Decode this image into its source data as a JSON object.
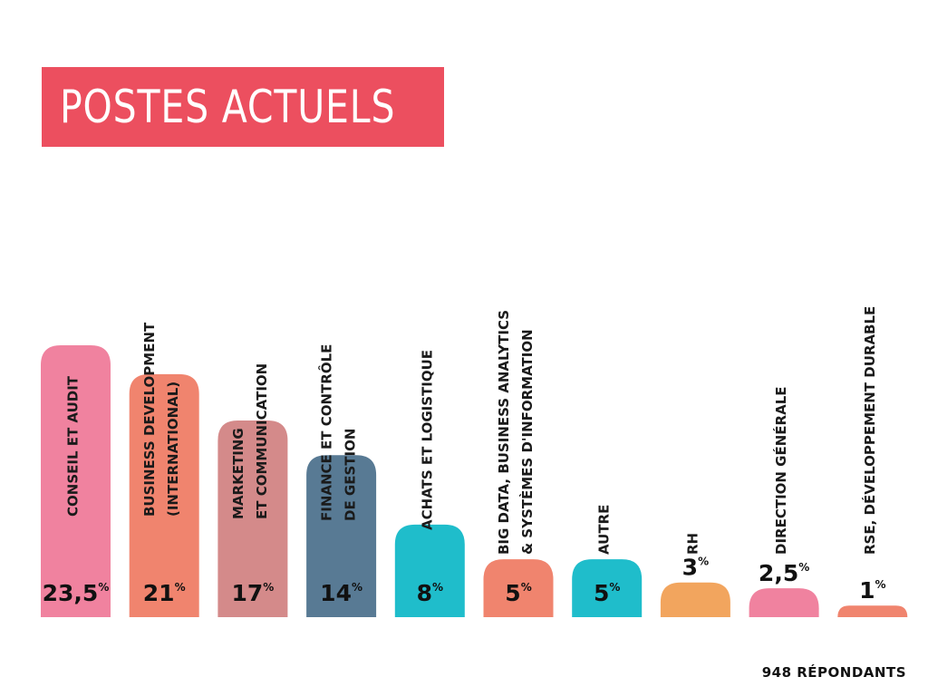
{
  "header": {
    "title": "POSTES ACTUELS"
  },
  "footer": {
    "respondents": "948 RÉPONDANTS"
  },
  "colors": {
    "title_bg": "#ec4f5f",
    "pink": "#f0829f",
    "salmon": "#f0846e",
    "rose": "#d48a8a",
    "slate": "#587a94",
    "teal": "#1fbdcb",
    "orange": "#f2a55e"
  },
  "chart_data": {
    "type": "bar",
    "title": "POSTES ACTUELS",
    "unit": "%",
    "ylim": [
      0,
      23.5
    ],
    "grid": false,
    "legend": "none",
    "categories": [
      "CONSEIL ET AUDIT",
      "BUSINESS DEVELOPMENT (INTERNATIONAL)",
      "MARKETING ET COMMUNICATION",
      "FINANCE ET CONTRÔLE DE GESTION",
      "ACHATS ET LOGISTIQUE",
      "BIG DATA, BUSINESS ANALYTICS & SYSTÈMES D'INFORMATION",
      "AUTRE",
      "RH",
      "DIRECTION GÉNÉRALE",
      "RSE, DÉVELOPPEMENT DURABLE"
    ],
    "label_lines": [
      [
        "CONSEIL ET AUDIT"
      ],
      [
        "BUSINESS DEVELOPMENT",
        "(INTERNATIONAL)"
      ],
      [
        "MARKETING",
        "ET COMMUNICATION"
      ],
      [
        "FINANCE ET CONTRÔLE",
        "DE GESTION"
      ],
      [
        "ACHATS ET LOGISTIQUE"
      ],
      [
        "BIG DATA, BUSINESS ANALYTICS",
        "& SYSTÈMES D'INFORMATION"
      ],
      [
        "AUTRE"
      ],
      [
        "RH"
      ],
      [
        "DIRECTION GÉNÉRALE"
      ],
      [
        "RSE, DÉVELOPPEMENT DURABLE"
      ]
    ],
    "values": [
      23.5,
      21,
      17,
      14,
      8,
      5,
      5,
      3,
      2.5,
      1
    ],
    "value_labels": [
      "23,5",
      "21",
      "17",
      "14",
      "8",
      "5",
      "5",
      "3",
      "2,5",
      "1"
    ],
    "bar_colors": [
      "#f0829f",
      "#f0846e",
      "#d48a8a",
      "#587a94",
      "#1fbdcb",
      "#f0846e",
      "#1fbdcb",
      "#f2a55e",
      "#f0829f",
      "#f0846e"
    ]
  }
}
